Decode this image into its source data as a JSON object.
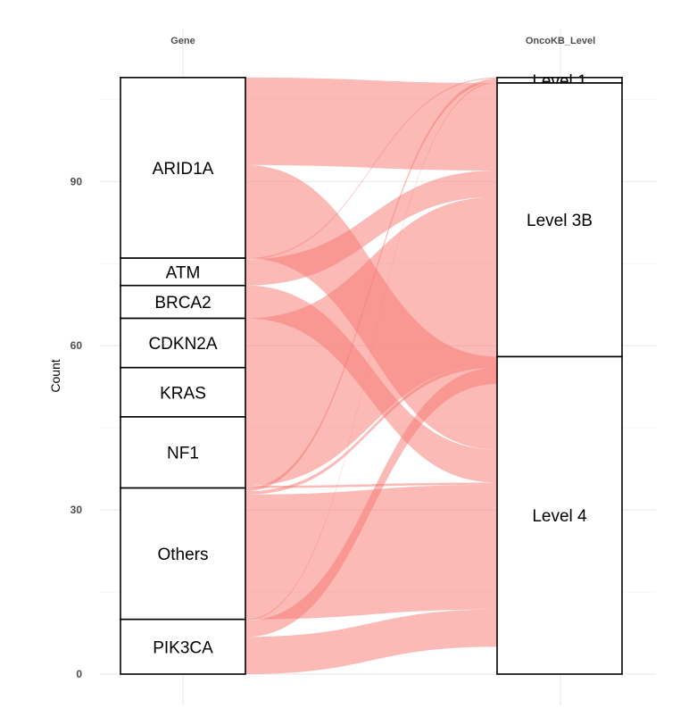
{
  "chart_data": {
    "type": "alluvial",
    "axes": [
      "Gene",
      "OncoKB_Level"
    ],
    "ylabel": "Count",
    "ylim": [
      0,
      109
    ],
    "y_ticks": [
      0,
      30,
      60,
      90
    ],
    "grid": true,
    "flow_color": "#f8766d",
    "left_strata": [
      {
        "label": "ARID1A",
        "count": 33
      },
      {
        "label": "ATM",
        "count": 5
      },
      {
        "label": "BRCA2",
        "count": 6
      },
      {
        "label": "CDKN2A",
        "count": 9
      },
      {
        "label": "KRAS",
        "count": 9
      },
      {
        "label": "NF1",
        "count": 13
      },
      {
        "label": "Others",
        "count": 24
      },
      {
        "label": "PIK3CA",
        "count": 10
      }
    ],
    "right_strata": [
      {
        "label": "Level 1",
        "count": 1
      },
      {
        "label": "Level 3B",
        "count": 50
      },
      {
        "label": "Level 4",
        "count": 58
      }
    ],
    "flows": [
      {
        "from": "ARID1A",
        "to": "Level 3B",
        "count": 16
      },
      {
        "from": "ARID1A",
        "to": "Level 4",
        "count": 17
      },
      {
        "from": "ATM",
        "to": "Level 1",
        "count": 0.2
      },
      {
        "from": "ATM",
        "to": "Level 3B",
        "count": 4.8
      },
      {
        "from": "BRCA2",
        "to": "Level 4",
        "count": 6
      },
      {
        "from": "CDKN2A",
        "to": "Level 3B",
        "count": 9
      },
      {
        "from": "KRAS",
        "to": "Level 3B",
        "count": 9
      },
      {
        "from": "NF1",
        "to": "Level 3B",
        "count": 12.6
      },
      {
        "from": "NF1",
        "to": "Level 4",
        "count": 0.4
      },
      {
        "from": "Others",
        "to": "Level 1",
        "count": 0.6
      },
      {
        "from": "Others",
        "to": "Level 3B",
        "count": 0.6
      },
      {
        "from": "Others",
        "to": "Level 4",
        "count": 22.8
      },
      {
        "from": "PIK3CA",
        "to": "Level 1",
        "count": 0.2
      },
      {
        "from": "PIK3CA",
        "to": "Level 3B",
        "count": 3
      },
      {
        "from": "PIK3CA",
        "to": "Level 4",
        "count": 6.8
      }
    ]
  }
}
